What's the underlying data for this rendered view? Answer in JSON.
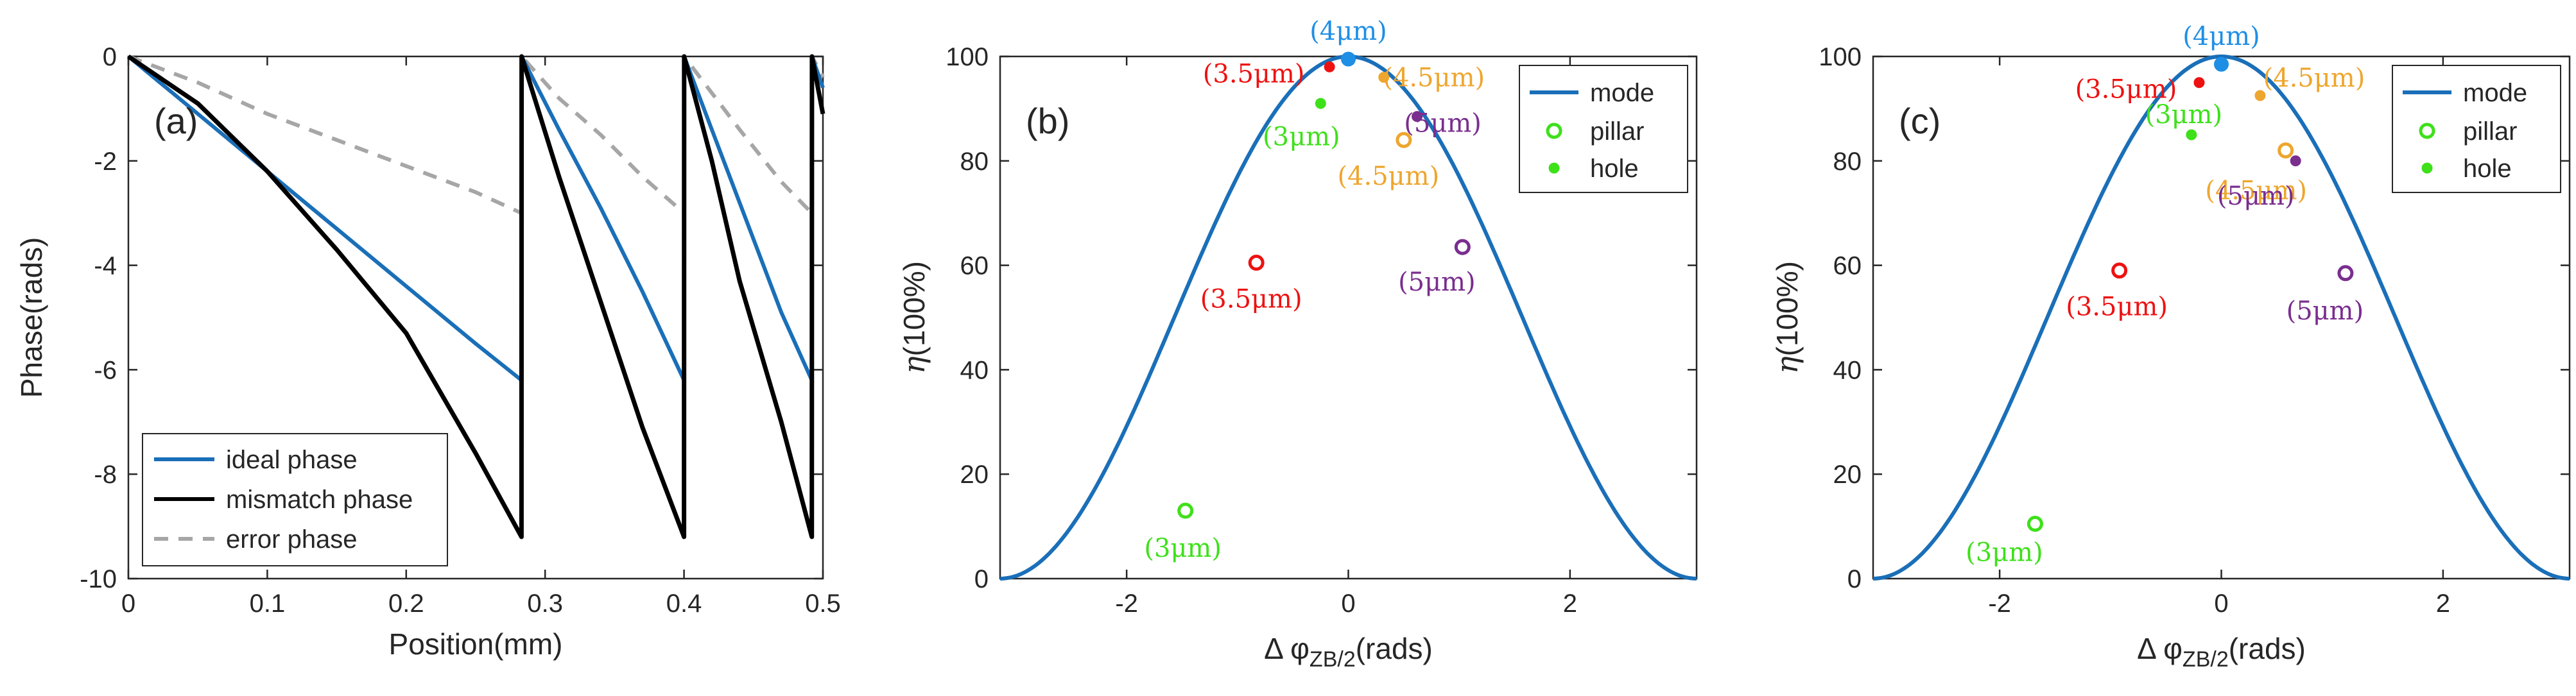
{
  "chart_data": [
    {
      "type": "line",
      "panel_label": "(a)",
      "xlabel": "Position(mm)",
      "ylabel": "Phase(rads)",
      "xlim": [
        0,
        0.5
      ],
      "ylim": [
        -10,
        0
      ],
      "xticks": [
        0,
        0.1,
        0.2,
        0.3,
        0.4,
        0.5
      ],
      "xtick_labels": [
        "0",
        "0.1",
        "0.2",
        "0.3",
        "0.4",
        "0.5"
      ],
      "yticks": [
        -10,
        -8,
        -6,
        -4,
        -2,
        0
      ],
      "ytick_labels": [
        "-10",
        "-8",
        "-6",
        "-4",
        "-2",
        "0"
      ],
      "legend_position": "bottom-left",
      "series": [
        {
          "name": "ideal phase",
          "color": "#1a6fb8",
          "x": [
            0,
            0.05,
            0.1,
            0.15,
            0.2,
            0.25,
            0.283,
            0.2831,
            0.31,
            0.34,
            0.37,
            0.4,
            0.4001,
            0.42,
            0.44,
            0.47,
            0.492,
            0.4921,
            0.5
          ],
          "y": [
            0,
            -1.1,
            -2.2,
            -3.3,
            -4.4,
            -5.5,
            -6.2,
            0,
            -1.4,
            -2.9,
            -4.5,
            -6.2,
            0,
            -1.4,
            -2.8,
            -4.9,
            -6.2,
            0,
            -0.6
          ]
        },
        {
          "name": "mismatch phase",
          "color": "#000000",
          "x": [
            0,
            0.05,
            0.1,
            0.15,
            0.2,
            0.25,
            0.283,
            0.2831,
            0.31,
            0.34,
            0.37,
            0.4,
            0.4001,
            0.42,
            0.44,
            0.47,
            0.492,
            0.4921,
            0.5
          ],
          "y": [
            0,
            -0.9,
            -2.2,
            -3.7,
            -5.3,
            -7.6,
            -9.2,
            0,
            -2.3,
            -4.7,
            -7.1,
            -9.2,
            0,
            -2.0,
            -4.3,
            -7.0,
            -9.2,
            0,
            -1.1
          ]
        },
        {
          "name": "error phase",
          "color": "#a6a6a6",
          "x": [
            0,
            0.05,
            0.1,
            0.15,
            0.2,
            0.25,
            0.283,
            0.2831,
            0.31,
            0.34,
            0.37,
            0.4,
            0.4001,
            0.42,
            0.44,
            0.47,
            0.492,
            0.4921,
            0.5
          ],
          "y": [
            0,
            -0.5,
            -1.1,
            -1.6,
            -2.1,
            -2.6,
            -3.0,
            0,
            -0.8,
            -1.5,
            -2.3,
            -3.0,
            0,
            -0.7,
            -1.4,
            -2.4,
            -3.0,
            0,
            -0.4
          ]
        }
      ]
    },
    {
      "type": "line+scatter",
      "panel_label": "(b)",
      "xlabel": "Δ φZB/2(rads)",
      "xlabel_main": "Δ φ",
      "xlabel_sub": "ZB/2",
      "xlabel_tail": "(rads)",
      "ylabel": "η(100%)",
      "ylabel_symbol": "η",
      "ylabel_tail": "(100%)",
      "xlim": [
        -3.1416,
        3.1416
      ],
      "ylim": [
        0,
        100
      ],
      "xticks": [
        -2,
        0,
        2
      ],
      "xtick_labels": [
        "-2",
        "0",
        "2"
      ],
      "yticks": [
        0,
        20,
        40,
        60,
        80,
        100
      ],
      "ytick_labels": [
        "0",
        "20",
        "40",
        "60",
        "80",
        "100"
      ],
      "legend_position": "top-right",
      "legend": [
        "mode",
        "pillar",
        "hole"
      ],
      "mode_curve": {
        "name": "mode",
        "color": "#1a6fb8",
        "formula": "100*cos^2(x/2)"
      },
      "peak_point": {
        "x": 0,
        "y": 99.5,
        "label": "(4μm)",
        "color": "#1f8fe5"
      },
      "pillar": [
        {
          "x": -1.47,
          "y": 13,
          "label": "(3μm)",
          "color": "#3ee01a"
        },
        {
          "x": -0.83,
          "y": 60.5,
          "label": "(3.5μm)",
          "color": "#ee1111"
        },
        {
          "x": 0.5,
          "y": 84,
          "label": "(4.5μm)",
          "color": "#eea62e"
        },
        {
          "x": 1.03,
          "y": 63.5,
          "label": "(5μm)",
          "color": "#7a2e8e"
        }
      ],
      "hole": [
        {
          "x": -0.25,
          "y": 91,
          "label": "(3μm)",
          "color": "#3ee01a"
        },
        {
          "x": -0.17,
          "y": 98,
          "label": "(3.5μm)",
          "color": "#ee1111"
        },
        {
          "x": 0.32,
          "y": 96,
          "label": "(4.5μm)",
          "color": "#eea62e"
        },
        {
          "x": 0.62,
          "y": 88.5,
          "label": "(5μm)",
          "color": "#7a2e8e"
        }
      ]
    },
    {
      "type": "line+scatter",
      "panel_label": "(c)",
      "xlabel": "Δ φZB/2(rads)",
      "xlabel_main": "Δ φ",
      "xlabel_sub": "ZB/2",
      "xlabel_tail": "(rads)",
      "ylabel": "η(100%)",
      "ylabel_symbol": "η",
      "ylabel_tail": "(100%)",
      "xlim": [
        -3.1416,
        3.1416
      ],
      "ylim": [
        0,
        100
      ],
      "xticks": [
        -2,
        0,
        2
      ],
      "xtick_labels": [
        "-2",
        "0",
        "2"
      ],
      "yticks": [
        0,
        20,
        40,
        60,
        80,
        100
      ],
      "ytick_labels": [
        "0",
        "20",
        "40",
        "60",
        "80",
        "100"
      ],
      "legend_position": "top-right",
      "legend": [
        "mode",
        "pillar",
        "hole"
      ],
      "mode_curve": {
        "name": "mode",
        "color": "#1a6fb8",
        "formula": "100*cos^2(x/2)"
      },
      "peak_point": {
        "x": 0,
        "y": 98.5,
        "label": "(4μm)",
        "color": "#1f8fe5"
      },
      "pillar": [
        {
          "x": -1.68,
          "y": 10.5,
          "label": "(3μm)",
          "color": "#3ee01a"
        },
        {
          "x": -0.92,
          "y": 59,
          "label": "(3.5μm)",
          "color": "#ee1111"
        },
        {
          "x": 0.58,
          "y": 82,
          "label": "(4.5μm)",
          "color": "#eea62e"
        },
        {
          "x": 1.12,
          "y": 58.5,
          "label": "(5μm)",
          "color": "#7a2e8e"
        }
      ],
      "hole": [
        {
          "x": -0.27,
          "y": 85,
          "label": "(3μm)",
          "color": "#3ee01a"
        },
        {
          "x": -0.2,
          "y": 95,
          "label": "(3.5μm)",
          "color": "#ee1111"
        },
        {
          "x": 0.35,
          "y": 92.5,
          "label": "(4.5μm)",
          "color": "#eea62e"
        },
        {
          "x": 0.67,
          "y": 80,
          "label": "(5μm)",
          "color": "#7a2e8e"
        }
      ]
    }
  ]
}
